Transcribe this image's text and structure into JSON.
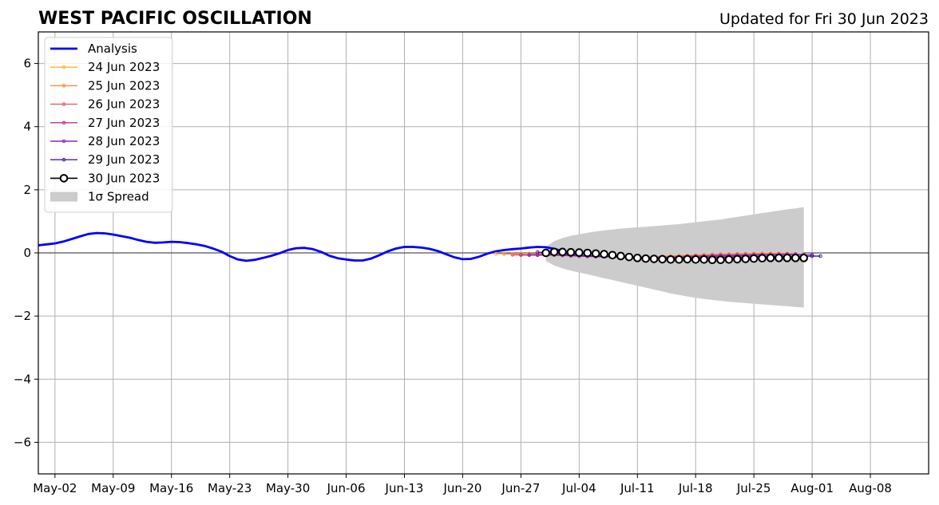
{
  "chart_data": {
    "type": "line",
    "title": "WEST PACIFIC OSCILLATION",
    "subtitle": "Updated for Fri 30 Jun 2023",
    "xlabel": "",
    "ylabel": "",
    "xlim": [
      "2023-04-30",
      "2023-08-15"
    ],
    "ylim": [
      -7,
      7
    ],
    "grid": true,
    "legend_position": "top-left",
    "x_ticks": [
      {
        "date": "2023-05-02",
        "label": "May-02"
      },
      {
        "date": "2023-05-09",
        "label": "May-09"
      },
      {
        "date": "2023-05-16",
        "label": "May-16"
      },
      {
        "date": "2023-05-23",
        "label": "May-23"
      },
      {
        "date": "2023-05-30",
        "label": "May-30"
      },
      {
        "date": "2023-06-06",
        "label": "Jun-06"
      },
      {
        "date": "2023-06-13",
        "label": "Jun-13"
      },
      {
        "date": "2023-06-20",
        "label": "Jun-20"
      },
      {
        "date": "2023-06-27",
        "label": "Jun-27"
      },
      {
        "date": "2023-07-04",
        "label": "Jul-04"
      },
      {
        "date": "2023-07-11",
        "label": "Jul-11"
      },
      {
        "date": "2023-07-18",
        "label": "Jul-18"
      },
      {
        "date": "2023-07-25",
        "label": "Jul-25"
      },
      {
        "date": "2023-08-01",
        "label": "Aug-01"
      },
      {
        "date": "2023-08-08",
        "label": "Aug-08"
      }
    ],
    "y_ticks": [
      {
        "value": 6,
        "label": "6"
      },
      {
        "value": 4,
        "label": "4"
      },
      {
        "value": 2,
        "label": "2"
      },
      {
        "value": 0,
        "label": "0"
      },
      {
        "value": -2,
        "label": "−2"
      },
      {
        "value": -4,
        "label": "−4"
      },
      {
        "value": -6,
        "label": "−6"
      }
    ],
    "analysis": {
      "name": "Analysis",
      "color": "#0000ff",
      "start_date": "2023-04-30",
      "values": [
        0.24,
        0.27,
        0.3,
        0.36,
        0.44,
        0.52,
        0.6,
        0.63,
        0.62,
        0.58,
        0.53,
        0.48,
        0.41,
        0.35,
        0.32,
        0.33,
        0.35,
        0.34,
        0.31,
        0.27,
        0.22,
        0.14,
        0.04,
        -0.1,
        -0.21,
        -0.25,
        -0.22,
        -0.16,
        -0.09,
        -0.01,
        0.09,
        0.15,
        0.16,
        0.12,
        0.03,
        -0.09,
        -0.17,
        -0.21,
        -0.24,
        -0.24,
        -0.18,
        -0.07,
        0.05,
        0.14,
        0.19,
        0.19,
        0.17,
        0.13,
        0.06,
        -0.04,
        -0.14,
        -0.2,
        -0.19,
        -0.12,
        -0.02,
        0.05,
        0.09,
        0.12,
        0.14,
        0.17,
        0.19,
        0.18,
        0.13,
        0.05,
        -0.01,
        -0.03
      ]
    },
    "forecasts": [
      {
        "name": "24 Jun 2023",
        "color": "#fcb33c",
        "start_date": "2023-06-24",
        "values": [
          -0.03,
          -0.03,
          -0.03,
          -0.02,
          -0.02,
          -0.04,
          -0.05,
          -0.06,
          -0.07,
          -0.08,
          -0.08,
          -0.09,
          -0.1,
          -0.1,
          -0.11,
          -0.11,
          -0.12,
          -0.12,
          -0.12,
          -0.12,
          -0.12,
          -0.11,
          -0.1,
          -0.09,
          -0.08,
          -0.07,
          -0.06,
          -0.05,
          -0.04,
          -0.03,
          -0.03,
          -0.02,
          -0.02,
          -0.02,
          -0.01
        ]
      },
      {
        "name": "25 Jun 2023",
        "color": "#f98c40",
        "start_date": "2023-06-25",
        "values": [
          -0.03,
          -0.04,
          -0.03,
          -0.02,
          -0.03,
          -0.05,
          -0.06,
          -0.07,
          -0.08,
          -0.09,
          -0.1,
          -0.1,
          -0.11,
          -0.12,
          -0.12,
          -0.13,
          -0.13,
          -0.13,
          -0.12,
          -0.11,
          -0.1,
          -0.09,
          -0.08,
          -0.07,
          -0.06,
          -0.05,
          -0.04,
          -0.04,
          -0.03,
          -0.03,
          -0.02,
          -0.02,
          -0.02,
          -0.02,
          -0.02
        ]
      },
      {
        "name": "26 Jun 2023",
        "color": "#e05f6e",
        "start_date": "2023-06-26",
        "values": [
          -0.06,
          -0.07,
          -0.06,
          -0.05,
          -0.06,
          -0.07,
          -0.08,
          -0.09,
          -0.1,
          -0.1,
          -0.11,
          -0.12,
          -0.12,
          -0.13,
          -0.13,
          -0.14,
          -0.14,
          -0.14,
          -0.13,
          -0.12,
          -0.11,
          -0.1,
          -0.09,
          -0.08,
          -0.07,
          -0.06,
          -0.06,
          -0.05,
          -0.05,
          -0.04,
          -0.04,
          -0.04,
          -0.03,
          -0.03,
          -0.03
        ]
      },
      {
        "name": "27 Jun 2023",
        "color": "#b5358e",
        "start_date": "2023-06-27",
        "values": [
          -0.06,
          -0.07,
          -0.07,
          -0.07,
          -0.07,
          -0.08,
          -0.09,
          -0.1,
          -0.11,
          -0.12,
          -0.12,
          -0.13,
          -0.14,
          -0.14,
          -0.15,
          -0.15,
          -0.15,
          -0.15,
          -0.14,
          -0.13,
          -0.12,
          -0.11,
          -0.1,
          -0.09,
          -0.08,
          -0.08,
          -0.07,
          -0.07,
          -0.06,
          -0.06,
          -0.05,
          -0.05,
          -0.05,
          -0.05,
          -0.05
        ]
      },
      {
        "name": "28 Jun 2023",
        "color": "#8a2bb5",
        "start_date": "2023-06-28",
        "values": [
          -0.06,
          -0.07,
          -0.06,
          -0.06,
          -0.07,
          -0.08,
          -0.09,
          -0.1,
          -0.11,
          -0.12,
          -0.13,
          -0.14,
          -0.14,
          -0.15,
          -0.15,
          -0.16,
          -0.16,
          -0.16,
          -0.15,
          -0.14,
          -0.13,
          -0.12,
          -0.11,
          -0.1,
          -0.09,
          -0.09,
          -0.08,
          -0.08,
          -0.07,
          -0.07,
          -0.07,
          -0.06,
          -0.06,
          -0.06,
          -0.06
        ]
      },
      {
        "name": "29 Jun 2023",
        "color": "#4b1d91",
        "start_date": "2023-06-29",
        "values": [
          0.02,
          0.01,
          -0.01,
          -0.03,
          -0.05,
          -0.07,
          -0.08,
          -0.1,
          -0.11,
          -0.12,
          -0.13,
          -0.14,
          -0.14,
          -0.15,
          -0.15,
          -0.16,
          -0.16,
          -0.16,
          -0.16,
          -0.16,
          -0.15,
          -0.15,
          -0.14,
          -0.14,
          -0.13,
          -0.13,
          -0.12,
          -0.12,
          -0.12,
          -0.11,
          -0.11,
          -0.11,
          -0.11,
          -0.1,
          -0.1
        ]
      }
    ],
    "current": {
      "name": "30 Jun 2023",
      "color": "#000000",
      "start_date": "2023-06-30",
      "values": [
        0.0,
        0.03,
        0.03,
        0.02,
        0.01,
        0.0,
        -0.02,
        -0.04,
        -0.07,
        -0.1,
        -0.13,
        -0.16,
        -0.18,
        -0.19,
        -0.2,
        -0.21,
        -0.21,
        -0.2,
        -0.21,
        -0.21,
        -0.22,
        -0.22,
        -0.21,
        -0.2,
        -0.19,
        -0.18,
        -0.17,
        -0.16,
        -0.16,
        -0.16,
        -0.16,
        -0.16
      ]
    },
    "spread": {
      "name": "1σ Spread",
      "color": "#cccccc",
      "start_date": "2023-06-30",
      "upper": [
        0.2,
        0.37,
        0.47,
        0.54,
        0.59,
        0.64,
        0.68,
        0.71,
        0.74,
        0.77,
        0.79,
        0.81,
        0.83,
        0.85,
        0.87,
        0.89,
        0.91,
        0.94,
        0.97,
        1.0,
        1.03,
        1.06,
        1.1,
        1.14,
        1.18,
        1.22,
        1.26,
        1.3,
        1.34,
        1.38,
        1.41,
        1.45
      ],
      "lower": [
        -0.26,
        -0.4,
        -0.49,
        -0.56,
        -0.62,
        -0.68,
        -0.74,
        -0.8,
        -0.86,
        -0.92,
        -0.98,
        -1.04,
        -1.1,
        -1.16,
        -1.22,
        -1.28,
        -1.33,
        -1.38,
        -1.42,
        -1.46,
        -1.49,
        -1.52,
        -1.55,
        -1.57,
        -1.59,
        -1.61,
        -1.63,
        -1.65,
        -1.67,
        -1.69,
        -1.71,
        -1.73
      ]
    },
    "legend": [
      {
        "label": "Analysis",
        "color": "#0000ff",
        "kind": "line"
      },
      {
        "label": "24 Jun 2023",
        "color": "#fcb33c",
        "kind": "small-marker"
      },
      {
        "label": "25 Jun 2023",
        "color": "#f98c40",
        "kind": "small-marker"
      },
      {
        "label": "26 Jun 2023",
        "color": "#e05f6e",
        "kind": "small-marker"
      },
      {
        "label": "27 Jun 2023",
        "color": "#b5358e",
        "kind": "small-marker"
      },
      {
        "label": "28 Jun 2023",
        "color": "#8a2bb5",
        "kind": "small-marker"
      },
      {
        "label": "29 Jun 2023",
        "color": "#4b1d91",
        "kind": "small-marker"
      },
      {
        "label": "30 Jun 2023",
        "color": "#000000",
        "kind": "open-circle"
      },
      {
        "label": "1σ Spread",
        "color": "#cccccc",
        "kind": "patch"
      }
    ]
  }
}
